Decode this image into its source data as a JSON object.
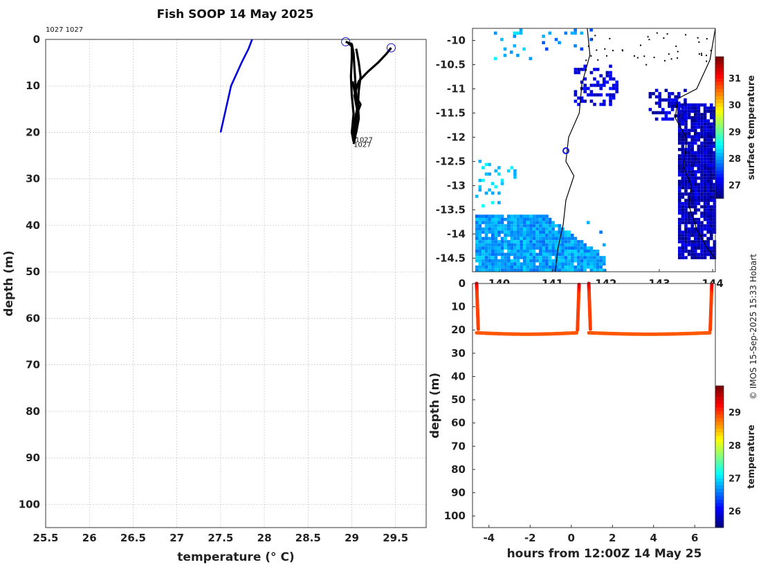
{
  "title": "Fish SOOP 14 May 2025",
  "credit": "© IMOS 15-Sep-2025 15:33 Hobart",
  "colors": {
    "profile_station": "#0000dd",
    "profile_tracks": "#000000",
    "land": "#000000",
    "grid": "#bbbbbb"
  },
  "chart_data": [
    {
      "id": "profile",
      "type": "line",
      "xlabel": "temperature (° C)",
      "ylabel": "depth (m)",
      "xlim": [
        25.5,
        29.85
      ],
      "ylim": [
        0,
        105
      ],
      "y_reversed": true,
      "xticks": [
        25.5,
        26,
        26.5,
        27,
        27.5,
        28,
        28.5,
        29,
        29.5
      ],
      "yticks": [
        0,
        10,
        20,
        30,
        40,
        50,
        60,
        70,
        80,
        90,
        100
      ],
      "header_note": "1027 1027",
      "annotations": [
        {
          "text": "1027",
          "x": 29.04,
          "y": 21.5
        },
        {
          "text": "1027",
          "x": 29.02,
          "y": 22.5
        }
      ],
      "series": [
        {
          "name": "station profile",
          "color": "#0000dd",
          "points": [
            [
              27.86,
              0
            ],
            [
              27.82,
              2
            ],
            [
              27.74,
              5
            ],
            [
              27.62,
              10
            ],
            [
              27.5,
              20
            ]
          ]
        },
        {
          "name": "track A",
          "color": "#000000",
          "start_marker": true,
          "points": [
            [
              28.93,
              0.5
            ],
            [
              29.0,
              1
            ],
            [
              29.02,
              3
            ],
            [
              29.03,
              6
            ],
            [
              29.04,
              9
            ],
            [
              29.05,
              12
            ],
            [
              29.06,
              15
            ],
            [
              29.05,
              18
            ],
            [
              29.03,
              21
            ],
            [
              29.02,
              22
            ]
          ]
        },
        {
          "name": "track B",
          "color": "#000000",
          "points": [
            [
              28.95,
              0.6
            ],
            [
              29.0,
              1.5
            ],
            [
              29.0,
              4
            ],
            [
              28.99,
              8
            ],
            [
              29.0,
              12
            ],
            [
              29.02,
              16
            ],
            [
              29.0,
              20
            ],
            [
              29.02,
              22
            ]
          ]
        },
        {
          "name": "track C",
          "color": "#000000",
          "points": [
            [
              29.05,
              2
            ],
            [
              29.08,
              5
            ],
            [
              29.1,
              8
            ],
            [
              29.08,
              11
            ],
            [
              29.07,
              14
            ],
            [
              29.08,
              17
            ],
            [
              29.05,
              20
            ],
            [
              29.02,
              22
            ]
          ]
        },
        {
          "name": "track D",
          "color": "#000000",
          "start_marker": true,
          "points": [
            [
              29.45,
              1.8
            ],
            [
              29.4,
              3
            ],
            [
              29.3,
              5
            ],
            [
              29.18,
              7
            ],
            [
              29.08,
              9
            ],
            [
              29.03,
              12
            ],
            [
              29.06,
              15
            ],
            [
              29.03,
              18
            ],
            [
              29.04,
              21
            ],
            [
              29.02,
              22.5
            ]
          ]
        },
        {
          "name": "track E",
          "color": "#000000",
          "points": [
            [
              29.01,
              9
            ],
            [
              29.04,
              12
            ],
            [
              29.1,
              14
            ],
            [
              29.06,
              16
            ],
            [
              29.02,
              19
            ],
            [
              29.03,
              22
            ]
          ]
        }
      ]
    },
    {
      "id": "map",
      "type": "heatmap",
      "xlim": [
        139.5,
        144.05
      ],
      "ylim": [
        -14.78,
        -9.75
      ],
      "xticks": [
        140,
        141,
        142,
        143,
        144
      ],
      "yticks": [
        -10,
        -10.5,
        -11,
        -11.5,
        -12,
        -12.5,
        -13,
        -13.5,
        -14,
        -14.5
      ],
      "ytick_labels": [
        "-10",
        "-10.5",
        "-11",
        "-11.5",
        "-12",
        "-12.5",
        "-13",
        "-13.5",
        "-14",
        "-14.5"
      ],
      "xtick_labels": [
        "140",
        "141",
        "142",
        "143",
        "144"
      ],
      "colorbar_label": "surface temperature",
      "colorbar_ticks": [
        27,
        28,
        29,
        30,
        31
      ],
      "colorbar_range": [
        26.5,
        31.8
      ],
      "marker": {
        "lon": 141.25,
        "lat": -12.28
      },
      "sst_patches": [
        {
          "lon": [
            139.55,
            141.95
          ],
          "lat": [
            -14.78,
            -13.6
          ],
          "value": 28.0,
          "density": 0.97
        },
        {
          "lon": [
            139.55,
            140.3
          ],
          "lat": [
            -13.4,
            -12.4
          ],
          "value": 28.3,
          "density": 0.15
        },
        {
          "lon": [
            143.35,
            144.05
          ],
          "lat": [
            -14.5,
            -11.3
          ],
          "value": 26.8,
          "density": 0.9
        },
        {
          "lon": [
            142.8,
            143.5
          ],
          "lat": [
            -11.6,
            -11.0
          ],
          "value": 26.9,
          "density": 0.45
        },
        {
          "lon": [
            141.4,
            142.2
          ],
          "lat": [
            -11.3,
            -10.5
          ],
          "value": 27.0,
          "density": 0.35
        },
        {
          "lon": [
            139.9,
            140.6
          ],
          "lat": [
            -10.4,
            -9.75
          ],
          "value": 28.2,
          "density": 0.12
        },
        {
          "lon": [
            140.8,
            141.7
          ],
          "lat": [
            -10.2,
            -9.75
          ],
          "value": 27.8,
          "density": 0.12
        }
      ]
    },
    {
      "id": "timeseries",
      "type": "scatter",
      "xlabel": "hours from 12:00Z 14 May 25",
      "ylabel": "depth (m)",
      "xlim": [
        -4.8,
        7.0
      ],
      "ylim": [
        0,
        105
      ],
      "y_reversed": true,
      "xticks": [
        -4,
        -2,
        0,
        2,
        4,
        6
      ],
      "yticks": [
        0,
        10,
        20,
        30,
        40,
        50,
        60,
        70,
        80,
        90,
        100
      ],
      "colorbar_label": "temperature",
      "colorbar_ticks": [
        26,
        27,
        28,
        29
      ],
      "colorbar_range": [
        25.5,
        29.8
      ],
      "segments": [
        {
          "hours": [
            -4.6,
            0.3
          ],
          "temps_surface": 29.0,
          "temps_bottom": 28.9
        },
        {
          "hours": [
            0.85,
            6.75
          ],
          "temps_surface": 29.0,
          "temps_bottom": 28.9
        }
      ]
    }
  ]
}
